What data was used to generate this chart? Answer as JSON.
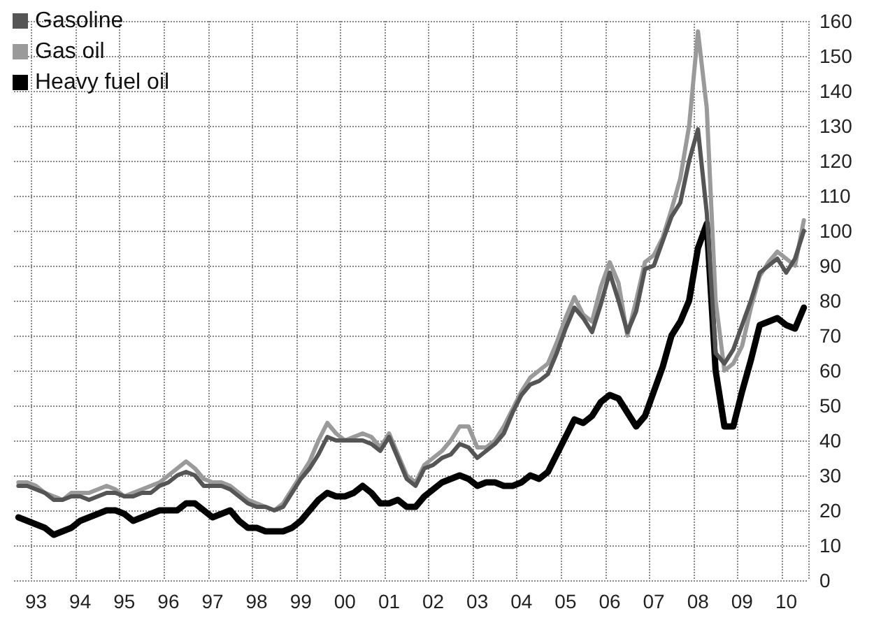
{
  "chart_data": {
    "type": "line",
    "legend": "top left",
    "grid": true,
    "marker": "none",
    "categories": [
      null,
      null,
      "93",
      null,
      null,
      null,
      null,
      "94",
      null,
      null,
      null,
      null,
      "95",
      null,
      null,
      null,
      null,
      "96",
      null,
      null,
      null,
      null,
      "97",
      null,
      null,
      null,
      null,
      "98",
      null,
      null,
      null,
      null,
      "99",
      null,
      null,
      null,
      null,
      "00",
      null,
      null,
      null,
      null,
      "01",
      null,
      null,
      null,
      null,
      "02",
      null,
      null,
      null,
      null,
      "03",
      null,
      null,
      null,
      null,
      "04",
      null,
      null,
      null,
      null,
      "05",
      null,
      null,
      null,
      null,
      "06",
      null,
      null,
      null,
      null,
      "07",
      null,
      null,
      null,
      null,
      "08",
      null,
      null,
      null,
      null,
      "09",
      null,
      null,
      null,
      null,
      "10",
      null,
      null
    ],
    "ylim": [
      0,
      160
    ],
    "yticks": [
      0,
      10,
      20,
      30,
      40,
      50,
      60,
      70,
      80,
      90,
      100,
      110,
      120,
      130,
      140,
      150,
      160
    ],
    "series": [
      {
        "name": "Gasoline",
        "color": "#555555",
        "values": [
          27,
          27,
          26,
          25,
          23,
          23,
          24,
          24,
          23,
          24,
          25,
          25,
          24,
          24,
          25,
          25,
          27,
          28,
          30,
          31,
          30,
          27,
          27,
          27,
          26,
          24,
          22,
          21,
          21,
          20,
          21,
          25,
          29,
          32,
          36,
          41,
          40,
          40,
          40,
          40,
          39,
          37,
          41,
          35,
          29,
          27,
          32,
          33,
          35,
          36,
          39,
          38,
          35,
          37,
          39,
          42,
          48,
          53,
          56,
          57,
          59,
          65,
          72,
          78,
          75,
          71,
          79,
          88,
          80,
          71,
          77,
          89,
          90,
          97,
          104,
          108,
          120,
          129,
          105,
          65,
          62,
          66,
          73,
          80,
          88,
          90,
          92,
          88,
          92,
          100
        ]
      },
      {
        "name": "Gas oil",
        "color": "#9a9a9a",
        "values": [
          28,
          28,
          27,
          25,
          24,
          23,
          25,
          25,
          25,
          26,
          27,
          26,
          24,
          25,
          26,
          27,
          28,
          30,
          32,
          34,
          32,
          29,
          28,
          28,
          27,
          25,
          23,
          22,
          21,
          20,
          22,
          26,
          30,
          34,
          40,
          45,
          42,
          40,
          41,
          42,
          41,
          38,
          42,
          36,
          30,
          28,
          33,
          35,
          37,
          40,
          44,
          44,
          38,
          38,
          40,
          44,
          49,
          54,
          58,
          60,
          62,
          68,
          75,
          81,
          76,
          74,
          84,
          91,
          85,
          70,
          80,
          91,
          93,
          98,
          106,
          115,
          130,
          157,
          135,
          80,
          60,
          62,
          67,
          78,
          87,
          91,
          94,
          92,
          90,
          103
        ]
      },
      {
        "name": "Heavy fuel oil",
        "color": "#000000",
        "values": [
          18,
          17,
          16,
          15,
          13,
          14,
          15,
          17,
          18,
          19,
          20,
          20,
          19,
          17,
          18,
          19,
          20,
          20,
          20,
          22,
          22,
          20,
          18,
          19,
          20,
          17,
          15,
          15,
          14,
          14,
          14,
          15,
          17,
          20,
          23,
          25,
          24,
          24,
          25,
          27,
          25,
          22,
          22,
          23,
          21,
          21,
          24,
          26,
          28,
          29,
          30,
          29,
          27,
          28,
          28,
          27,
          27,
          28,
          30,
          29,
          31,
          36,
          41,
          46,
          45,
          47,
          51,
          53,
          52,
          48,
          44,
          47,
          54,
          61,
          70,
          74,
          80,
          95,
          102,
          60,
          44,
          44,
          54,
          63,
          73,
          74,
          75,
          73,
          72,
          78
        ]
      }
    ]
  }
}
